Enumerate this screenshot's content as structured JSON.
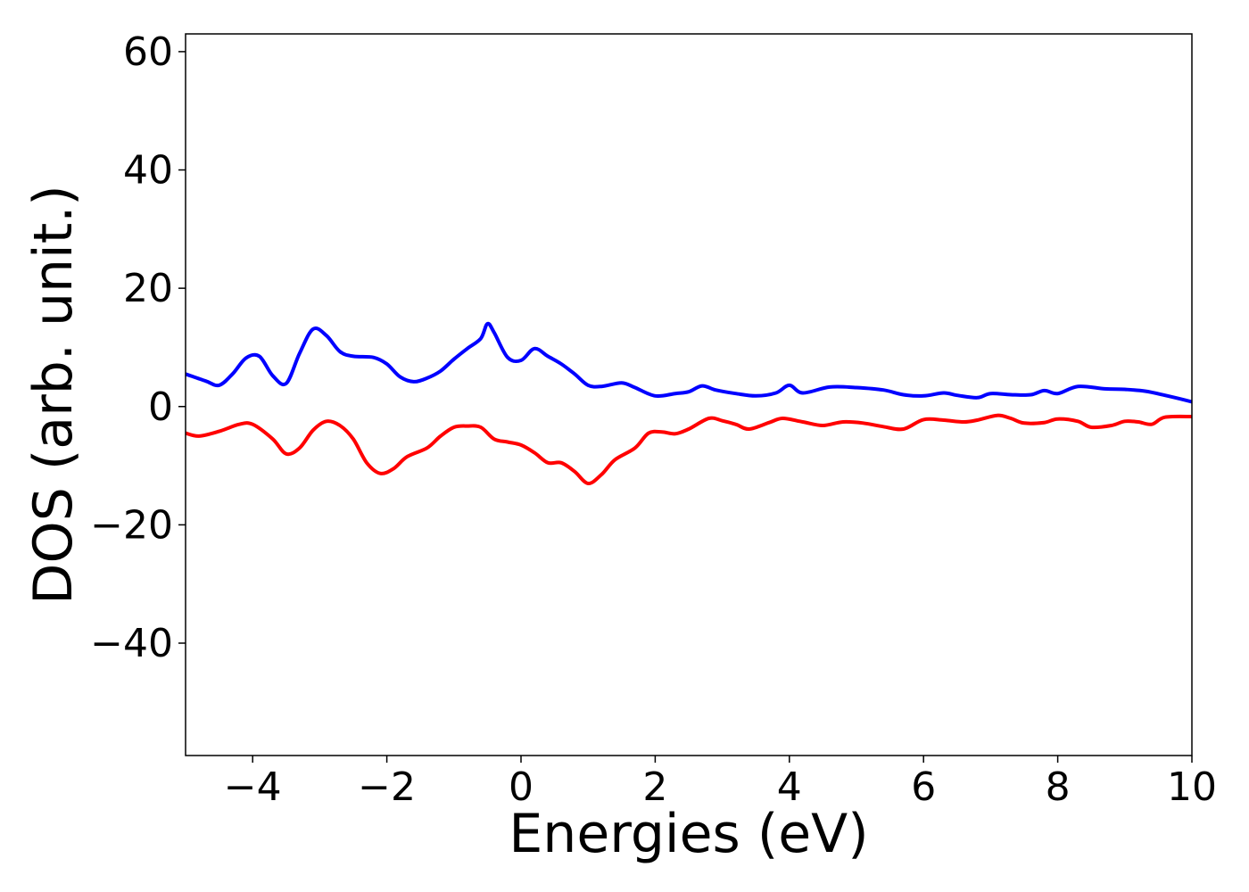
{
  "chart_data": {
    "type": "line",
    "xlabel": "Energies (eV)",
    "ylabel": "DOS (arb. unit.)",
    "xlim": [
      -5,
      10
    ],
    "ylim": [
      -59,
      63
    ],
    "x_ticks": [
      -4,
      -2,
      0,
      2,
      4,
      6,
      8,
      10
    ],
    "y_ticks": [
      -40,
      -20,
      0,
      20,
      40,
      60
    ],
    "x_tick_labels": [
      "−4",
      "−2",
      "0",
      "2",
      "4",
      "6",
      "8",
      "10"
    ],
    "y_tick_labels": [
      "−40",
      "−20",
      "0",
      "20",
      "40",
      "60"
    ],
    "grid": false,
    "legend": "none",
    "series": [
      {
        "color": "#0000ff",
        "points": [
          [
            -5.0,
            5.5
          ],
          [
            -4.7,
            4.3
          ],
          [
            -4.5,
            3.6
          ],
          [
            -4.3,
            5.5
          ],
          [
            -4.1,
            8.2
          ],
          [
            -3.9,
            8.5
          ],
          [
            -3.7,
            5.2
          ],
          [
            -3.5,
            3.9
          ],
          [
            -3.3,
            9.0
          ],
          [
            -3.1,
            13.1
          ],
          [
            -2.9,
            12.0
          ],
          [
            -2.7,
            9.3
          ],
          [
            -2.5,
            8.5
          ],
          [
            -2.2,
            8.3
          ],
          [
            -2.0,
            7.2
          ],
          [
            -1.8,
            5.0
          ],
          [
            -1.6,
            4.2
          ],
          [
            -1.4,
            4.8
          ],
          [
            -1.2,
            6.0
          ],
          [
            -1.0,
            8.0
          ],
          [
            -0.8,
            9.8
          ],
          [
            -0.6,
            11.5
          ],
          [
            -0.5,
            14.0
          ],
          [
            -0.4,
            12.5
          ],
          [
            -0.2,
            8.3
          ],
          [
            0.0,
            7.8
          ],
          [
            0.2,
            9.8
          ],
          [
            0.4,
            8.5
          ],
          [
            0.6,
            7.2
          ],
          [
            0.8,
            5.5
          ],
          [
            1.0,
            3.6
          ],
          [
            1.2,
            3.4
          ],
          [
            1.5,
            4.0
          ],
          [
            1.7,
            3.2
          ],
          [
            2.0,
            1.8
          ],
          [
            2.3,
            2.2
          ],
          [
            2.5,
            2.5
          ],
          [
            2.7,
            3.5
          ],
          [
            2.9,
            2.8
          ],
          [
            3.2,
            2.2
          ],
          [
            3.5,
            1.8
          ],
          [
            3.8,
            2.3
          ],
          [
            4.0,
            3.6
          ],
          [
            4.2,
            2.3
          ],
          [
            4.6,
            3.3
          ],
          [
            5.0,
            3.2
          ],
          [
            5.4,
            2.8
          ],
          [
            5.7,
            2.0
          ],
          [
            6.0,
            1.8
          ],
          [
            6.3,
            2.3
          ],
          [
            6.5,
            1.9
          ],
          [
            6.8,
            1.5
          ],
          [
            7.0,
            2.2
          ],
          [
            7.3,
            2.0
          ],
          [
            7.6,
            2.0
          ],
          [
            7.8,
            2.7
          ],
          [
            8.0,
            2.2
          ],
          [
            8.3,
            3.4
          ],
          [
            8.7,
            3.0
          ],
          [
            9.0,
            2.9
          ],
          [
            9.3,
            2.6
          ],
          [
            9.6,
            1.9
          ],
          [
            10.0,
            0.8
          ]
        ]
      },
      {
        "color": "#ff0000",
        "points": [
          [
            -5.0,
            -4.5
          ],
          [
            -4.8,
            -5.0
          ],
          [
            -4.5,
            -4.2
          ],
          [
            -4.2,
            -3.0
          ],
          [
            -4.0,
            -3.0
          ],
          [
            -3.7,
            -5.5
          ],
          [
            -3.5,
            -8.0
          ],
          [
            -3.3,
            -7.0
          ],
          [
            -3.1,
            -4.0
          ],
          [
            -2.9,
            -2.5
          ],
          [
            -2.7,
            -3.2
          ],
          [
            -2.5,
            -5.5
          ],
          [
            -2.3,
            -9.5
          ],
          [
            -2.1,
            -11.3
          ],
          [
            -1.9,
            -10.5
          ],
          [
            -1.7,
            -8.5
          ],
          [
            -1.4,
            -7.0
          ],
          [
            -1.2,
            -5.0
          ],
          [
            -1.0,
            -3.5
          ],
          [
            -0.8,
            -3.3
          ],
          [
            -0.6,
            -3.5
          ],
          [
            -0.4,
            -5.5
          ],
          [
            -0.2,
            -6.0
          ],
          [
            0.0,
            -6.5
          ],
          [
            0.2,
            -7.8
          ],
          [
            0.4,
            -9.5
          ],
          [
            0.6,
            -9.5
          ],
          [
            0.8,
            -11.0
          ],
          [
            1.0,
            -13.0
          ],
          [
            1.2,
            -11.5
          ],
          [
            1.4,
            -9.0
          ],
          [
            1.7,
            -7.0
          ],
          [
            1.9,
            -4.5
          ],
          [
            2.1,
            -4.3
          ],
          [
            2.3,
            -4.6
          ],
          [
            2.5,
            -3.8
          ],
          [
            2.8,
            -2.0
          ],
          [
            3.0,
            -2.4
          ],
          [
            3.2,
            -3.0
          ],
          [
            3.4,
            -3.8
          ],
          [
            3.7,
            -2.7
          ],
          [
            3.9,
            -2.0
          ],
          [
            4.2,
            -2.6
          ],
          [
            4.5,
            -3.2
          ],
          [
            4.8,
            -2.6
          ],
          [
            5.1,
            -2.8
          ],
          [
            5.4,
            -3.4
          ],
          [
            5.7,
            -3.8
          ],
          [
            6.0,
            -2.2
          ],
          [
            6.3,
            -2.3
          ],
          [
            6.6,
            -2.6
          ],
          [
            6.8,
            -2.3
          ],
          [
            7.1,
            -1.5
          ],
          [
            7.3,
            -2.0
          ],
          [
            7.5,
            -2.8
          ],
          [
            7.8,
            -2.7
          ],
          [
            8.0,
            -2.1
          ],
          [
            8.3,
            -2.5
          ],
          [
            8.5,
            -3.5
          ],
          [
            8.8,
            -3.2
          ],
          [
            9.0,
            -2.5
          ],
          [
            9.2,
            -2.6
          ],
          [
            9.4,
            -3.0
          ],
          [
            9.6,
            -1.8
          ],
          [
            10.0,
            -1.7
          ]
        ]
      }
    ]
  }
}
